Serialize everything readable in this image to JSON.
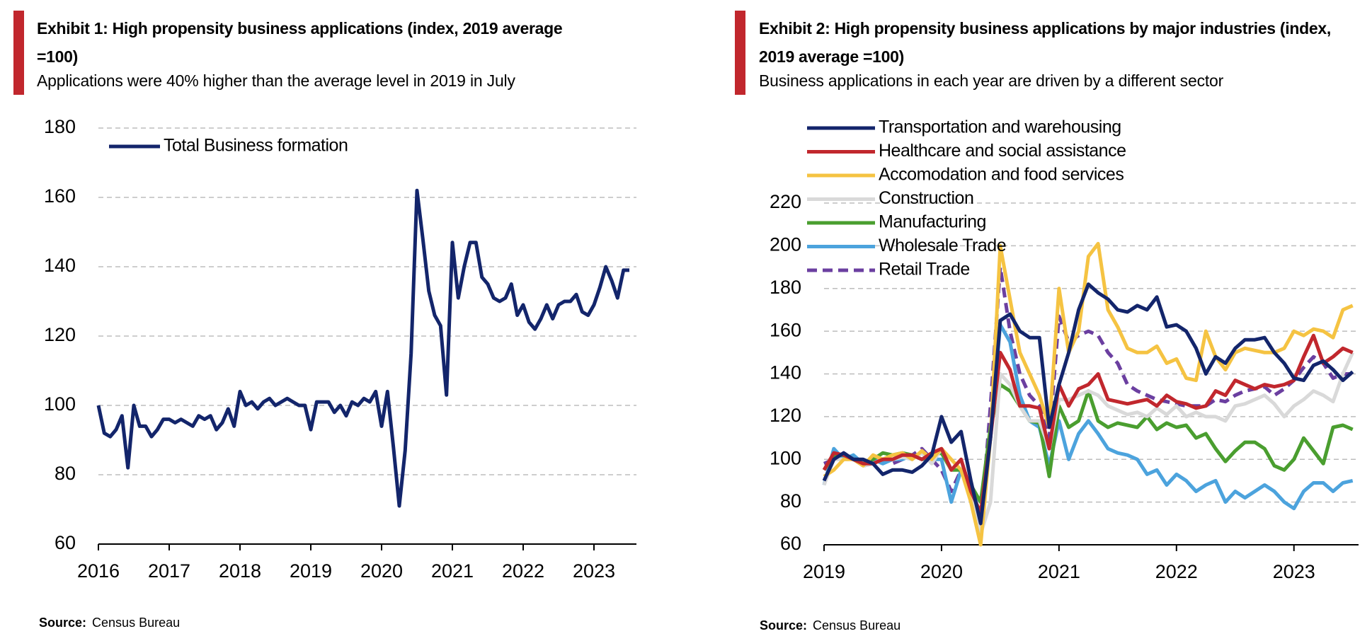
{
  "chart_data": [
    {
      "type": "line",
      "title": "Exhibit 1: High propensity business applications (index, 2019 average =100)",
      "subtitle": "Applications were 40% higher than the average level in 2019 in July",
      "source_label": "Source:",
      "source": "Census Bureau",
      "legend": "top-left",
      "grid": true,
      "xlim": [
        2016,
        2023.6
      ],
      "xticks": [
        2016,
        2017,
        2018,
        2019,
        2020,
        2021,
        2022,
        2023
      ],
      "ylim": [
        60,
        180
      ],
      "yticks": [
        60,
        80,
        100,
        120,
        140,
        160,
        180
      ],
      "x": [
        2016,
        2016.083,
        2016.167,
        2016.25,
        2016.333,
        2016.417,
        2016.5,
        2016.583,
        2016.667,
        2016.75,
        2016.833,
        2016.917,
        2017,
        2017.083,
        2017.167,
        2017.25,
        2017.333,
        2017.417,
        2017.5,
        2017.583,
        2017.667,
        2017.75,
        2017.833,
        2017.917,
        2018,
        2018.083,
        2018.167,
        2018.25,
        2018.333,
        2018.417,
        2018.5,
        2018.583,
        2018.667,
        2018.75,
        2018.833,
        2018.917,
        2019,
        2019.083,
        2019.167,
        2019.25,
        2019.333,
        2019.417,
        2019.5,
        2019.583,
        2019.667,
        2019.75,
        2019.833,
        2019.917,
        2020,
        2020.083,
        2020.167,
        2020.25,
        2020.333,
        2020.417,
        2020.5,
        2020.583,
        2020.667,
        2020.75,
        2020.833,
        2020.917,
        2021,
        2021.083,
        2021.167,
        2021.25,
        2021.333,
        2021.417,
        2021.5,
        2021.583,
        2021.667,
        2021.75,
        2021.833,
        2021.917,
        2022,
        2022.083,
        2022.167,
        2022.25,
        2022.333,
        2022.417,
        2022.5,
        2022.583,
        2022.667,
        2022.75,
        2022.833,
        2022.917,
        2023,
        2023.083,
        2023.167,
        2023.25,
        2023.333,
        2023.417,
        2023.5
      ],
      "series": [
        {
          "name": "Total Business formation",
          "color": "#13256b",
          "values": [
            100,
            92,
            91,
            93,
            97,
            82,
            100,
            94,
            94,
            91,
            93,
            96,
            96,
            95,
            96,
            95,
            94,
            97,
            96,
            97,
            93,
            95,
            99,
            94,
            104,
            100,
            101,
            99,
            101,
            102,
            100,
            101,
            102,
            101,
            100,
            100,
            93,
            101,
            101,
            101,
            98,
            100,
            97,
            101,
            100,
            102,
            101,
            104,
            94,
            104,
            88,
            71,
            87,
            115,
            162,
            148,
            133,
            126,
            123,
            103,
            147,
            131,
            140,
            147,
            147,
            137,
            135,
            131,
            130,
            131,
            135,
            126,
            129,
            124,
            122,
            125,
            129,
            125,
            129,
            130,
            130,
            132,
            127,
            126,
            129,
            134,
            140,
            136,
            131,
            139,
            139
          ]
        }
      ]
    },
    {
      "type": "line",
      "title": "Exhibit 2: High propensity business applications by major industries (index, 2019 average =100)",
      "subtitle": "Business applications in each year are driven by a different sector",
      "source_label": "Source:",
      "source": "Census Bureau",
      "legend": "top-left",
      "grid": true,
      "xlim": [
        2019,
        2023.55
      ],
      "xticks": [
        2019,
        2020,
        2021,
        2022,
        2023
      ],
      "ylim": [
        60,
        220
      ],
      "yticks": [
        60,
        80,
        100,
        120,
        140,
        160,
        180,
        200,
        220
      ],
      "x": [
        2019,
        2019.083,
        2019.167,
        2019.25,
        2019.333,
        2019.417,
        2019.5,
        2019.583,
        2019.667,
        2019.75,
        2019.833,
        2019.917,
        2020,
        2020.083,
        2020.167,
        2020.25,
        2020.333,
        2020.417,
        2020.5,
        2020.583,
        2020.667,
        2020.75,
        2020.833,
        2020.917,
        2021,
        2021.083,
        2021.167,
        2021.25,
        2021.333,
        2021.417,
        2021.5,
        2021.583,
        2021.667,
        2021.75,
        2021.833,
        2021.917,
        2022,
        2022.083,
        2022.167,
        2022.25,
        2022.333,
        2022.417,
        2022.5,
        2022.583,
        2022.667,
        2022.75,
        2022.833,
        2022.917,
        2023,
        2023.083,
        2023.167,
        2023.25,
        2023.333,
        2023.417,
        2023.5
      ],
      "series": [
        {
          "name": "Transportation and warehousing",
          "color": "#13256b",
          "values": [
            90,
            100,
            103,
            100,
            100,
            98,
            93,
            95,
            95,
            94,
            97,
            102,
            120,
            108,
            113,
            90,
            70,
            110,
            165,
            168,
            160,
            157,
            157,
            115,
            135,
            150,
            170,
            182,
            178,
            175,
            170,
            169,
            172,
            170,
            176,
            162,
            163,
            160,
            152,
            140,
            148,
            145,
            152,
            156,
            156,
            157,
            150,
            145,
            138,
            137,
            144,
            146,
            142,
            137,
            141
          ]
        },
        {
          "name": "Healthcare and social assistance",
          "color": "#c1272d",
          "values": [
            95,
            103,
            102,
            100,
            98,
            98,
            100,
            100,
            102,
            102,
            100,
            103,
            105,
            95,
            100,
            85,
            75,
            110,
            150,
            142,
            125,
            125,
            124,
            105,
            135,
            125,
            133,
            135,
            140,
            128,
            127,
            126,
            127,
            128,
            125,
            130,
            127,
            126,
            124,
            125,
            132,
            130,
            137,
            135,
            133,
            135,
            134,
            135,
            137,
            148,
            158,
            145,
            148,
            152,
            150
          ]
        },
        {
          "name": "Accomodation and food services",
          "color": "#f5c342",
          "values": [
            92,
            95,
            100,
            100,
            97,
            102,
            100,
            102,
            103,
            100,
            104,
            100,
            105,
            100,
            95,
            80,
            60,
            110,
            200,
            175,
            150,
            140,
            130,
            115,
            180,
            150,
            160,
            195,
            201,
            170,
            162,
            152,
            150,
            150,
            153,
            145,
            147,
            138,
            137,
            160,
            148,
            142,
            150,
            152,
            151,
            150,
            150,
            152,
            160,
            158,
            161,
            160,
            157,
            170,
            172
          ]
        },
        {
          "name": "Construction",
          "color": "#d9d9d9",
          "values": [
            88,
            100,
            100,
            100,
            97,
            98,
            100,
            100,
            101,
            100,
            103,
            98,
            105,
            95,
            100,
            82,
            65,
            80,
            140,
            135,
            125,
            118,
            118,
            105,
            128,
            128,
            130,
            132,
            130,
            125,
            123,
            121,
            122,
            120,
            124,
            121,
            125,
            120,
            122,
            120,
            120,
            118,
            125,
            126,
            128,
            130,
            126,
            120,
            125,
            128,
            132,
            130,
            127,
            140,
            150
          ]
        },
        {
          "name": "Manufacturing",
          "color": "#4a9e2f",
          "values": [
            95,
            102,
            102,
            100,
            98,
            100,
            103,
            102,
            103,
            102,
            100,
            102,
            103,
            95,
            95,
            88,
            80,
            115,
            135,
            132,
            125,
            118,
            117,
            92,
            125,
            115,
            118,
            132,
            118,
            115,
            117,
            116,
            115,
            120,
            114,
            117,
            115,
            116,
            110,
            112,
            105,
            99,
            104,
            108,
            108,
            105,
            97,
            95,
            100,
            110,
            104,
            98,
            115,
            116,
            114
          ]
        },
        {
          "name": "Wholesale Trade",
          "color": "#4ca3dd",
          "values": [
            88,
            105,
            100,
            102,
            98,
            100,
            98,
            100,
            100,
            102,
            100,
            100,
            100,
            80,
            95,
            85,
            80,
            110,
            163,
            155,
            130,
            118,
            115,
            97,
            118,
            100,
            112,
            118,
            112,
            105,
            103,
            102,
            100,
            93,
            95,
            88,
            93,
            90,
            85,
            88,
            90,
            80,
            85,
            82,
            85,
            88,
            85,
            80,
            77,
            85,
            89,
            89,
            85,
            89,
            90
          ]
        },
        {
          "name": "Retail Trade",
          "color": "#6b3fa0",
          "dashed": true,
          "values": [
            98,
            100,
            103,
            100,
            97,
            98,
            100,
            98,
            100,
            102,
            105,
            100,
            95,
            85,
            95,
            85,
            68,
            125,
            190,
            160,
            140,
            130,
            125,
            110,
            167,
            155,
            158,
            160,
            158,
            150,
            145,
            135,
            132,
            130,
            128,
            127,
            126,
            125,
            125,
            125,
            128,
            127,
            130,
            132,
            133,
            134,
            130,
            133,
            137,
            143,
            148,
            145,
            138,
            140,
            140
          ]
        }
      ]
    }
  ]
}
